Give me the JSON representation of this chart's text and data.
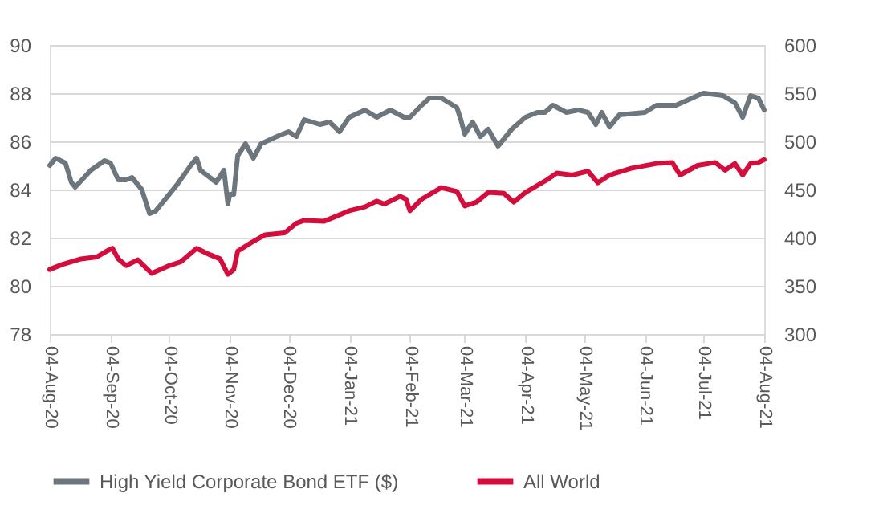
{
  "chart_data": {
    "type": "line",
    "xlim": [
      "2020-08-04",
      "2021-08-04"
    ],
    "xticks": [
      {
        "value": "2020-08-04",
        "label": "04-Aug-20"
      },
      {
        "value": "2020-09-04",
        "label": "04-Sep-20"
      },
      {
        "value": "2020-10-04",
        "label": "04-Oct-20"
      },
      {
        "value": "2020-11-04",
        "label": "04-Nov-20"
      },
      {
        "value": "2020-12-04",
        "label": "04-Dec-20"
      },
      {
        "value": "2021-01-04",
        "label": "04-Jan-21"
      },
      {
        "value": "2021-02-04",
        "label": "04-Feb-21"
      },
      {
        "value": "2021-03-04",
        "label": "04-Mar-21"
      },
      {
        "value": "2021-04-04",
        "label": "04-Apr-21"
      },
      {
        "value": "2021-05-04",
        "label": "04-May-21"
      },
      {
        "value": "2021-06-04",
        "label": "04-Jun-21"
      },
      {
        "value": "2021-07-04",
        "label": "04-Jul-21"
      },
      {
        "value": "2021-08-04",
        "label": "04-Aug-21"
      }
    ],
    "ylim": [
      78,
      90
    ],
    "yticks": [
      78,
      80,
      82,
      84,
      86,
      88,
      90
    ],
    "y2lim": [
      300,
      600
    ],
    "y2ticks": [
      300,
      350,
      400,
      450,
      500,
      550,
      600
    ],
    "grid": "y",
    "legend": "bottom",
    "line_style": "solid",
    "marker": "none",
    "series": [
      {
        "name": "High Yield Corporate Bond ETF ($)",
        "color": "#6d767d",
        "x": [
          "2020-08-04",
          "2020-08-07",
          "2020-08-12",
          "2020-08-15",
          "2020-08-17",
          "2020-08-25",
          "2020-09-01",
          "2020-09-04",
          "2020-09-08",
          "2020-09-12",
          "2020-09-15",
          "2020-09-20",
          "2020-09-24",
          "2020-09-27",
          "2020-10-04",
          "2020-10-08",
          "2020-10-15",
          "2020-10-18",
          "2020-10-20",
          "2020-10-28",
          "2020-11-01",
          "2020-11-03",
          "2020-11-04",
          "2020-11-06",
          "2020-11-08",
          "2020-11-12",
          "2020-11-16",
          "2020-11-20",
          "2020-11-28",
          "2020-12-04",
          "2020-12-08",
          "2020-12-12",
          "2020-12-20",
          "2020-12-25",
          "2020-12-30",
          "2021-01-04",
          "2021-01-12",
          "2021-01-18",
          "2021-01-25",
          "2021-02-01",
          "2021-02-04",
          "2021-02-10",
          "2021-02-14",
          "2021-02-20",
          "2021-02-28",
          "2021-03-02",
          "2021-03-04",
          "2021-03-08",
          "2021-03-12",
          "2021-03-16",
          "2021-03-21",
          "2021-03-28",
          "2021-04-04",
          "2021-04-10",
          "2021-04-14",
          "2021-04-18",
          "2021-04-25",
          "2021-05-01",
          "2021-05-06",
          "2021-05-10",
          "2021-05-13",
          "2021-05-17",
          "2021-05-22",
          "2021-06-04",
          "2021-06-10",
          "2021-06-20",
          "2021-07-01",
          "2021-07-04",
          "2021-07-14",
          "2021-07-20",
          "2021-07-24",
          "2021-07-28",
          "2021-08-01",
          "2021-08-04"
        ],
        "values": [
          85.0,
          85.3,
          85.1,
          84.3,
          84.1,
          84.8,
          85.2,
          85.1,
          84.4,
          84.4,
          84.5,
          84.0,
          83.0,
          83.1,
          83.8,
          84.2,
          85.0,
          85.3,
          84.8,
          84.3,
          84.8,
          83.4,
          83.8,
          83.8,
          85.4,
          85.9,
          85.3,
          85.9,
          86.2,
          86.4,
          86.2,
          86.9,
          86.7,
          86.8,
          86.4,
          87.0,
          87.3,
          87.0,
          87.3,
          87.0,
          87.0,
          87.5,
          87.8,
          87.8,
          87.4,
          86.9,
          86.3,
          86.8,
          86.2,
          86.5,
          85.8,
          86.5,
          87.0,
          87.2,
          87.2,
          87.5,
          87.2,
          87.3,
          87.2,
          86.7,
          87.2,
          86.6,
          87.1,
          87.2,
          87.5,
          87.5,
          87.9,
          88.0,
          87.9,
          87.6,
          87.0,
          87.9,
          87.8,
          87.3
        ]
      },
      {
        "name": "All World",
        "color": "#d40e3c",
        "axis": "y2",
        "x": [
          "2020-08-04",
          "2020-08-10",
          "2020-08-20",
          "2020-08-28",
          "2020-09-02",
          "2020-09-05",
          "2020-09-08",
          "2020-09-12",
          "2020-09-18",
          "2020-09-25",
          "2020-10-04",
          "2020-10-10",
          "2020-10-18",
          "2020-10-24",
          "2020-10-30",
          "2020-11-03",
          "2020-11-06",
          "2020-11-08",
          "2020-11-15",
          "2020-11-22",
          "2020-12-02",
          "2020-12-08",
          "2020-12-12",
          "2020-12-22",
          "2020-12-28",
          "2021-01-04",
          "2021-01-12",
          "2021-01-18",
          "2021-01-22",
          "2021-01-30",
          "2021-02-02",
          "2021-02-04",
          "2021-02-10",
          "2021-02-20",
          "2021-02-28",
          "2021-03-04",
          "2021-03-10",
          "2021-03-16",
          "2021-03-24",
          "2021-03-29",
          "2021-04-04",
          "2021-04-15",
          "2021-04-20",
          "2021-04-28",
          "2021-05-06",
          "2021-05-11",
          "2021-05-17",
          "2021-05-28",
          "2021-06-10",
          "2021-06-18",
          "2021-06-22",
          "2021-07-01",
          "2021-07-10",
          "2021-07-15",
          "2021-07-20",
          "2021-07-24",
          "2021-07-28",
          "2021-08-01",
          "2021-08-04"
        ],
        "values": [
          367,
          372,
          378,
          380,
          386,
          389,
          378,
          371,
          377,
          363,
          371,
          375,
          389,
          383,
          378,
          362,
          367,
          386,
          395,
          403,
          405,
          415,
          418,
          417,
          422,
          428,
          432,
          438,
          435,
          443,
          440,
          428,
          440,
          452,
          448,
          433,
          437,
          447,
          446,
          437,
          447,
          460,
          467,
          465,
          469,
          457,
          465,
          472,
          477,
          478,
          465,
          475,
          478,
          470,
          477,
          465,
          477,
          478,
          481
        ]
      }
    ]
  }
}
